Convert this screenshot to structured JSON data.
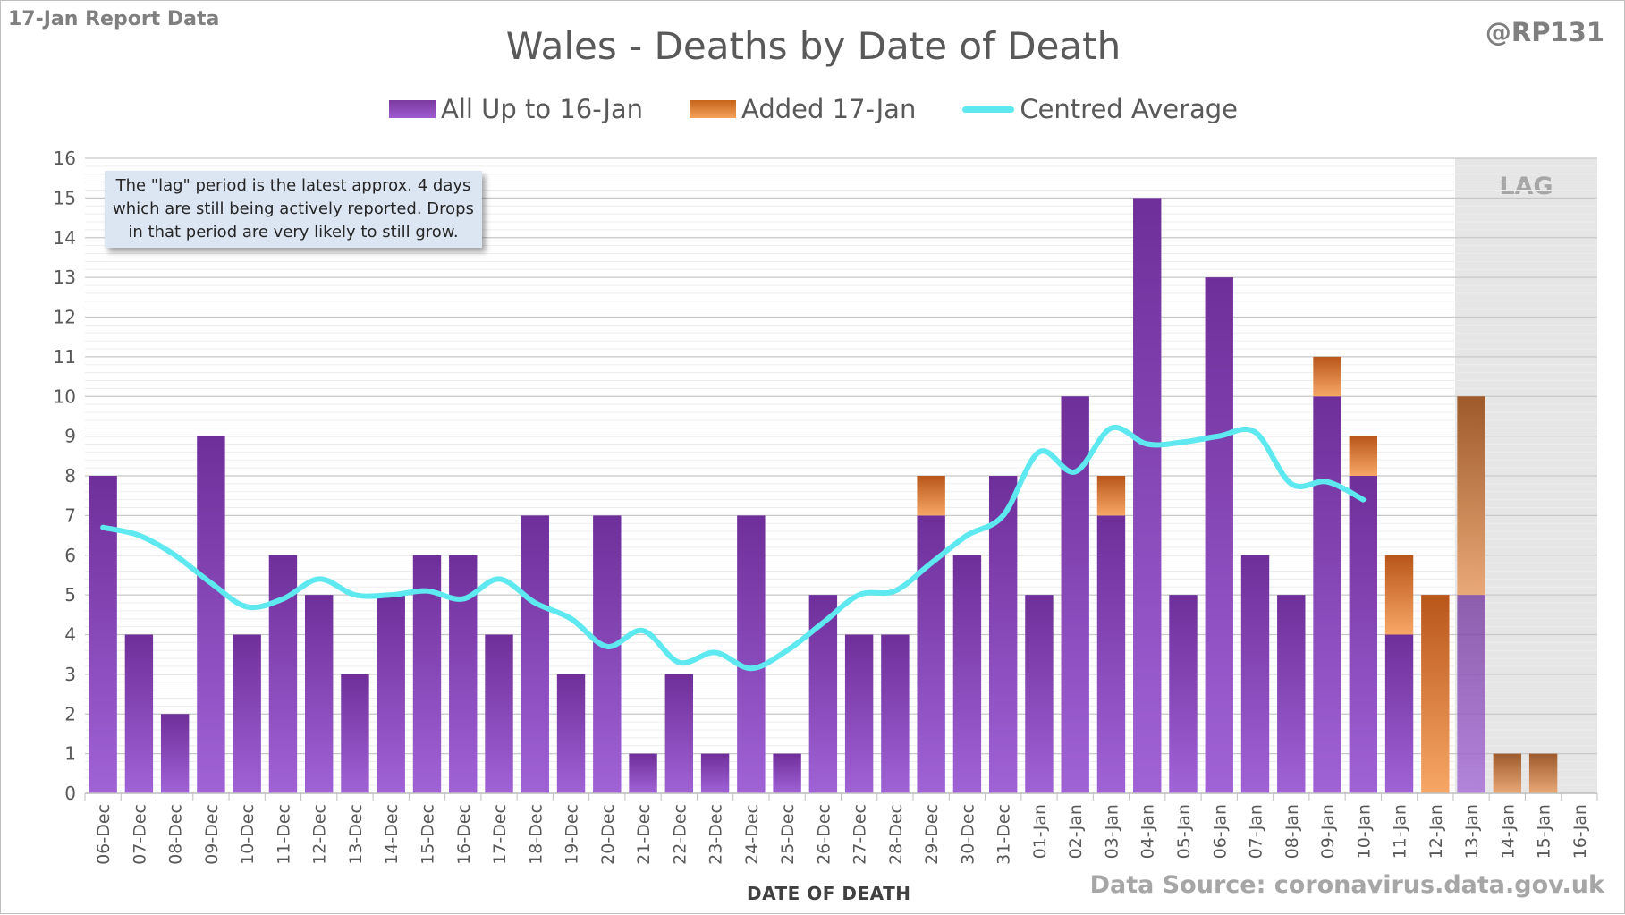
{
  "header": {
    "report_tag": "17-Jan Report Data",
    "author_tag": "@RP131"
  },
  "footer": {
    "source": "Data Source: coronavirus.data.gov.uk"
  },
  "annotation": {
    "note": "The \"lag\" period is the latest approx. 4 days which are still being actively reported.  Drops in that period are very likely to still grow.",
    "lag_label": "LAG"
  },
  "colors": {
    "purple": "#8a45bf",
    "orange": "#e07a2e",
    "average_line": "#5ee8ef",
    "lag_shading": "#e6e6e6"
  },
  "chart_data": {
    "type": "bar",
    "stacked": true,
    "title": "Wales - Deaths by Date of Death",
    "xlabel": "DATE OF DEATH",
    "ylabel": "",
    "ylim": [
      0,
      16
    ],
    "yticks": [
      0,
      1,
      2,
      3,
      4,
      5,
      6,
      7,
      8,
      9,
      10,
      11,
      12,
      13,
      14,
      15,
      16
    ],
    "grid": true,
    "legend_position": "top-center",
    "categories": [
      "06-Dec",
      "07-Dec",
      "08-Dec",
      "09-Dec",
      "10-Dec",
      "11-Dec",
      "12-Dec",
      "13-Dec",
      "14-Dec",
      "15-Dec",
      "16-Dec",
      "17-Dec",
      "18-Dec",
      "19-Dec",
      "20-Dec",
      "21-Dec",
      "22-Dec",
      "23-Dec",
      "24-Dec",
      "25-Dec",
      "26-Dec",
      "27-Dec",
      "28-Dec",
      "29-Dec",
      "30-Dec",
      "31-Dec",
      "01-Jan",
      "02-Jan",
      "03-Jan",
      "04-Jan",
      "05-Jan",
      "06-Jan",
      "07-Jan",
      "08-Jan",
      "09-Jan",
      "10-Jan",
      "11-Jan",
      "12-Jan",
      "13-Jan",
      "14-Jan",
      "15-Jan",
      "16-Jan"
    ],
    "series": [
      {
        "name": "All Up to 16-Jan",
        "type": "bar",
        "color": "#8a45bf",
        "values": [
          8,
          4,
          2,
          9,
          4,
          6,
          5,
          3,
          5,
          6,
          6,
          4,
          7,
          3,
          7,
          1,
          3,
          1,
          7,
          1,
          5,
          4,
          4,
          7,
          6,
          8,
          5,
          10,
          7,
          15,
          5,
          13,
          6,
          5,
          10,
          8,
          4,
          0,
          5,
          0,
          0,
          0
        ]
      },
      {
        "name": "Added 17-Jan",
        "type": "bar",
        "color": "#e07a2e",
        "values": [
          0,
          0,
          0,
          0,
          0,
          0,
          0,
          0,
          0,
          0,
          0,
          0,
          0,
          0,
          0,
          0,
          0,
          0,
          0,
          0,
          0,
          0,
          0,
          1,
          0,
          0,
          0,
          0,
          1,
          0,
          0,
          0,
          0,
          0,
          1,
          1,
          2,
          5,
          5,
          1,
          1,
          0
        ]
      },
      {
        "name": "Centred Average",
        "type": "line",
        "color": "#5ee8ef",
        "values": [
          6.7,
          6.5,
          6.0,
          5.3,
          4.7,
          4.9,
          5.4,
          5.0,
          5.0,
          5.1,
          4.9,
          5.4,
          4.8,
          4.4,
          3.7,
          4.1,
          3.3,
          3.55,
          3.15,
          3.6,
          4.3,
          5.0,
          5.1,
          5.8,
          6.5,
          7.0,
          8.6,
          8.1,
          9.2,
          8.8,
          8.85,
          9.0,
          9.1,
          7.8,
          7.85,
          7.4,
          null,
          null,
          null,
          null,
          null,
          null
        ]
      }
    ],
    "lag_categories": [
      "13-Jan",
      "14-Jan",
      "15-Jan",
      "16-Jan"
    ]
  }
}
